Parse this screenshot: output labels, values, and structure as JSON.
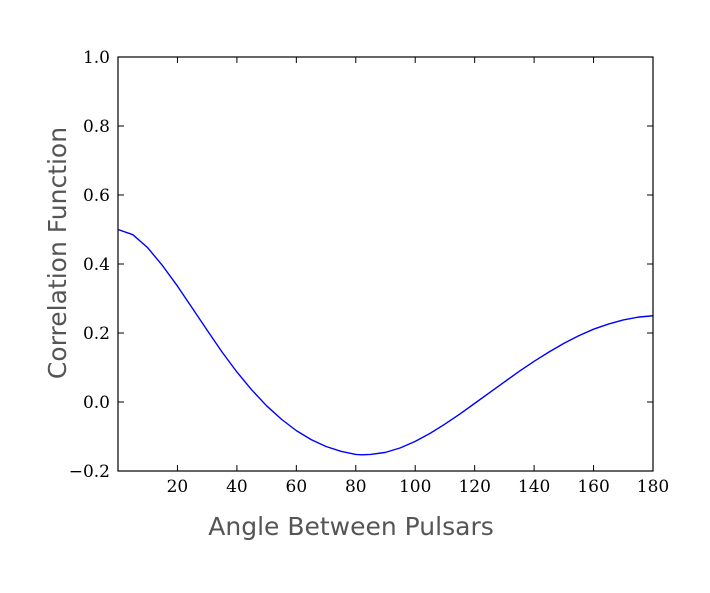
{
  "chart_data": {
    "type": "line",
    "title": "",
    "xlabel": "Angle Between Pulsars",
    "ylabel": "Correlation Function",
    "xlim": [
      0,
      180
    ],
    "ylim": [
      -0.2,
      1.0
    ],
    "xticks": [
      20,
      40,
      60,
      80,
      100,
      120,
      140,
      160,
      180
    ],
    "xtick_labels": [
      "20",
      "40",
      "60",
      "80",
      "100",
      "120",
      "140",
      "160",
      "180"
    ],
    "yticks": [
      -0.2,
      0.0,
      0.2,
      0.4,
      0.6,
      0.8,
      1.0
    ],
    "ytick_labels": [
      "−0.2",
      "0.0",
      "0.2",
      "0.4",
      "0.6",
      "0.8",
      "1.0"
    ],
    "grid": false,
    "series": [
      {
        "color": "#0000ff",
        "x": [
          0,
          5,
          10,
          15,
          20,
          25,
          30,
          35,
          40,
          45,
          50,
          55,
          60,
          65,
          70,
          75,
          80,
          82,
          85,
          90,
          95,
          100,
          105,
          110,
          115,
          120,
          125,
          130,
          135,
          140,
          145,
          150,
          155,
          160,
          165,
          170,
          175,
          180
        ],
        "y": [
          0.5,
          0.485,
          0.447,
          0.395,
          0.336,
          0.272,
          0.208,
          0.145,
          0.087,
          0.035,
          -0.011,
          -0.05,
          -0.083,
          -0.109,
          -0.129,
          -0.143,
          -0.152,
          -0.153,
          -0.152,
          -0.146,
          -0.133,
          -0.114,
          -0.091,
          -0.064,
          -0.035,
          -0.004,
          0.027,
          0.058,
          0.089,
          0.118,
          0.145,
          0.17,
          0.192,
          0.211,
          0.226,
          0.238,
          0.246,
          0.25
        ]
      }
    ]
  }
}
